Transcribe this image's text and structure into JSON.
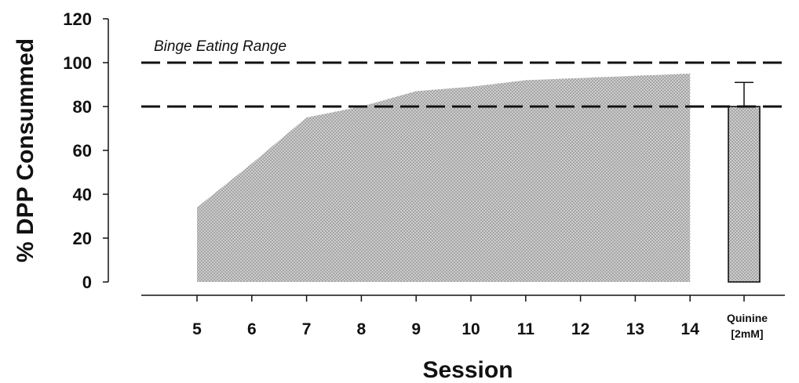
{
  "chart_data": {
    "type": "area",
    "xlabel": "Session",
    "ylabel": "% DPP Consummed",
    "ylim": [
      0,
      120
    ],
    "yticks": [
      0,
      20,
      40,
      60,
      80,
      100,
      120
    ],
    "grid": false,
    "x": [
      5,
      6,
      7,
      8,
      9,
      10,
      11,
      12,
      13,
      14
    ],
    "x_tick_labels": [
      "5",
      "6",
      "7",
      "8",
      "9",
      "10",
      "11",
      "12",
      "13",
      "14"
    ],
    "series": [
      {
        "values": [
          34,
          54,
          75,
          80,
          87,
          89,
          92,
          93,
          94,
          95
        ]
      }
    ],
    "bar": {
      "label_lines": [
        "Quinine",
        "[2mM]"
      ],
      "value": 80,
      "error": 11
    },
    "reference_lines": [
      100,
      80
    ],
    "annotation": "Binge Eating Range",
    "colors": {
      "fill": "#c8c8c8",
      "stroke": "#111111"
    }
  }
}
